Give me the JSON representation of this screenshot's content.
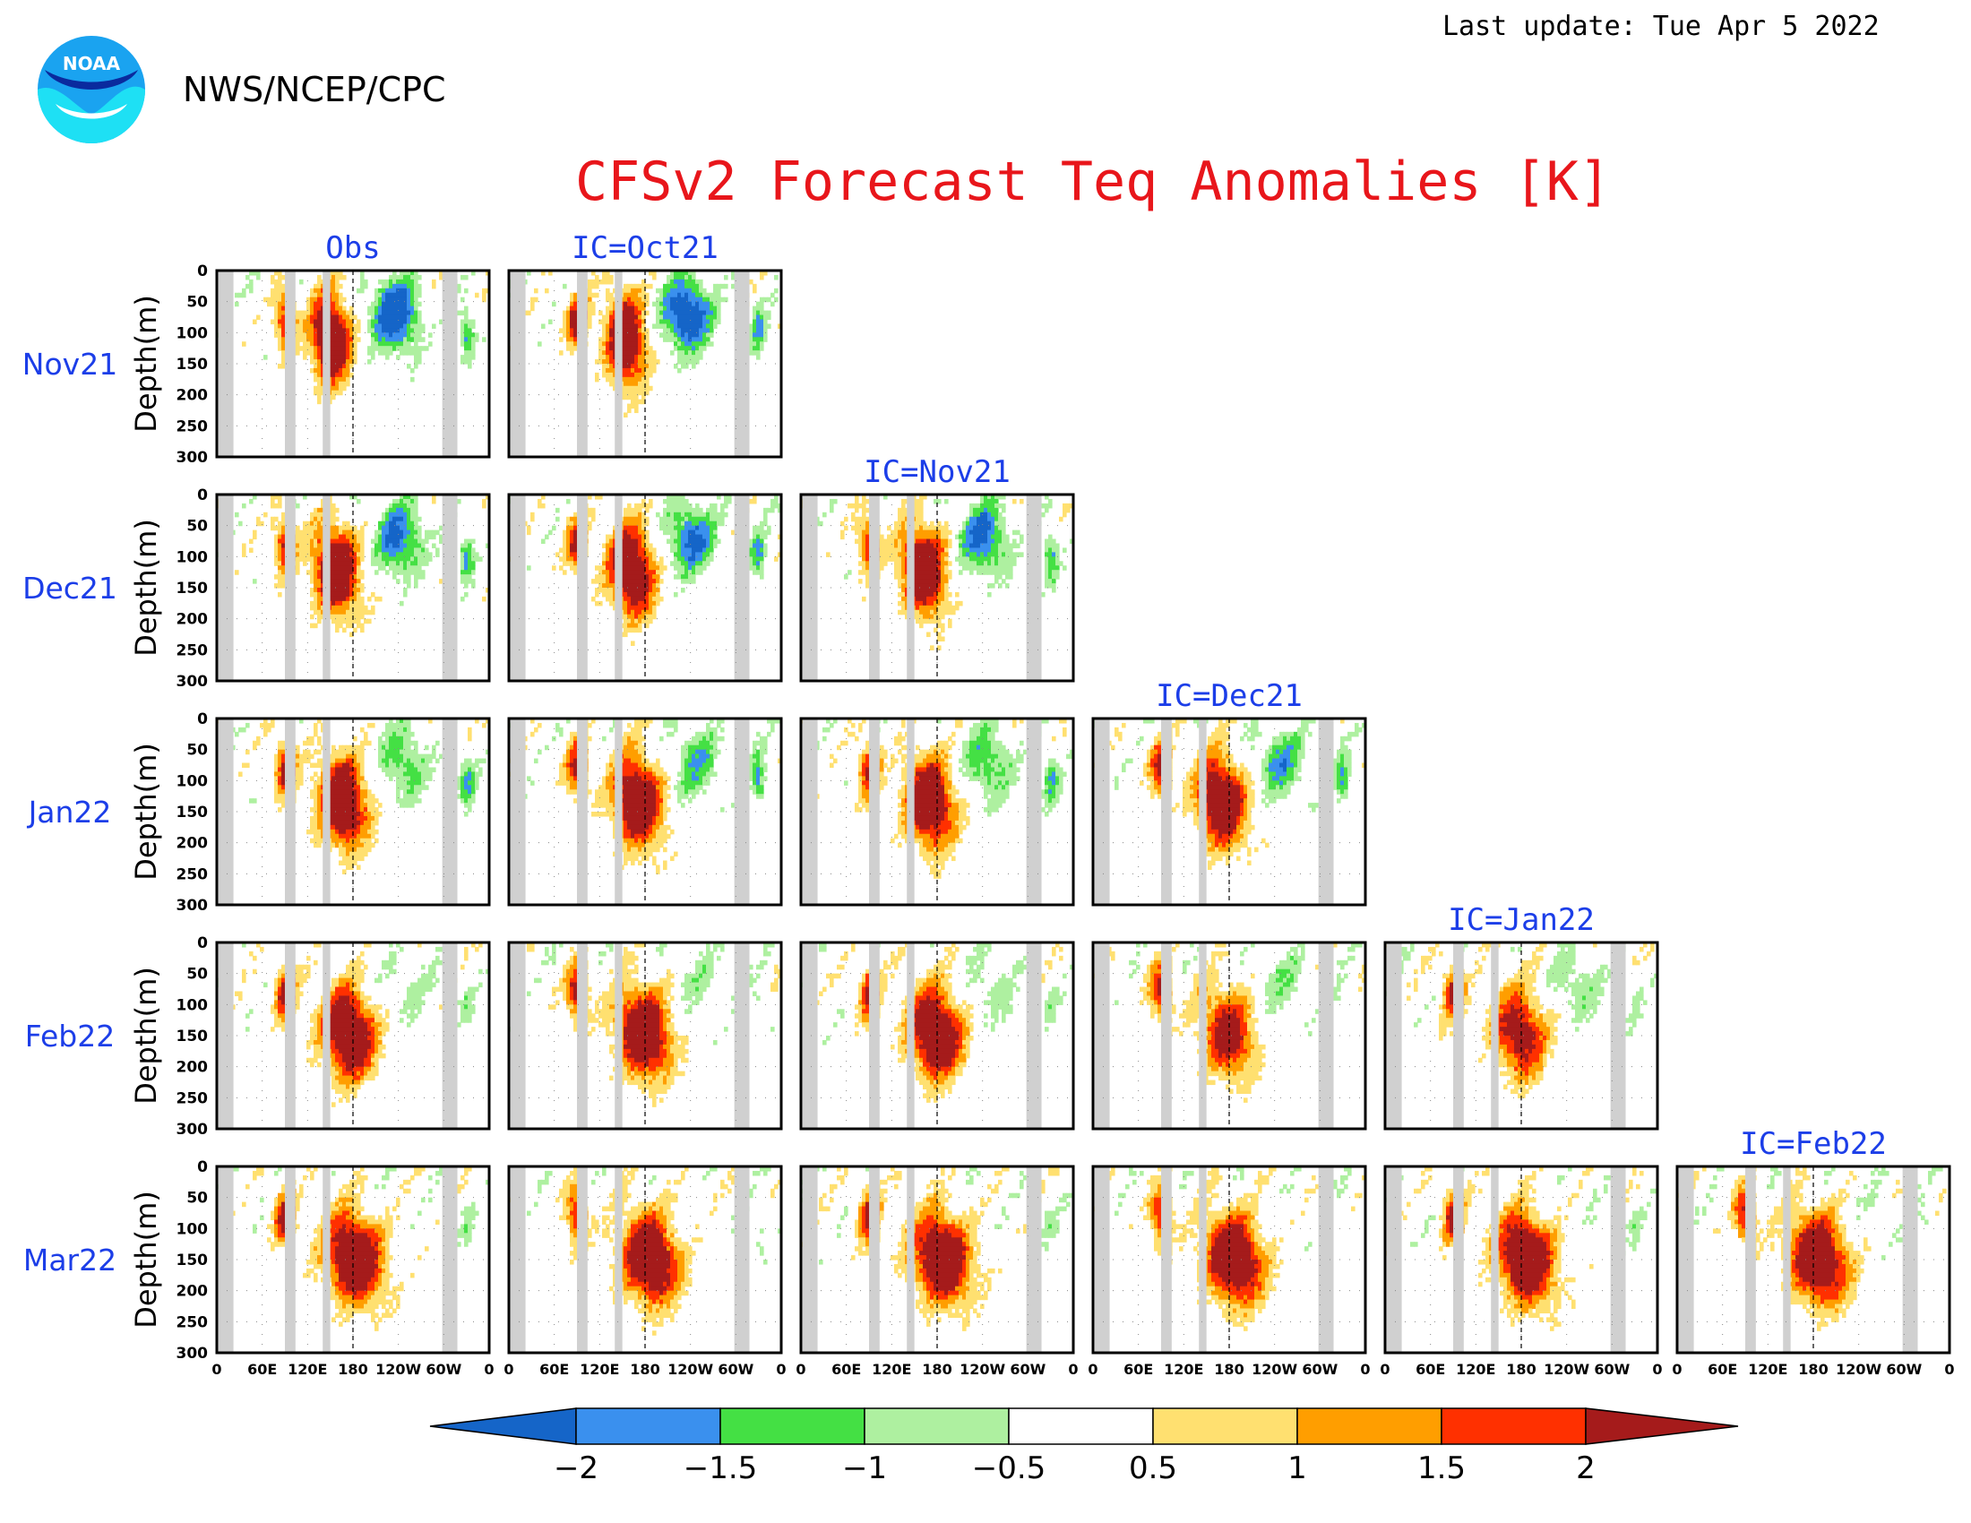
{
  "header": {
    "last_update": "Last update: Tue Apr  5 2022",
    "org": "NWS/NCEP/CPC",
    "logo_text": "NOAA",
    "title": "CFSv2 Forecast Teq Anomalies [K]"
  },
  "colors": {
    "title": "#e8161b",
    "column_labels": "#1c3ee8",
    "row_labels": "#1c3ee8",
    "land_mask": "#d0d0d0",
    "levels": [
      "#1565c8",
      "#3a90ee",
      "#44e044",
      "#aef0a0",
      "#ffffff",
      "#ffe070",
      "#ff9e00",
      "#ff3000",
      "#a51b1b"
    ]
  },
  "chart_data": {
    "type": "heatmap",
    "title": "CFSv2 Forecast Teq Anomalies [K]",
    "columns": [
      "Obs",
      "IC=Oct21",
      "IC=Nov21",
      "IC=Dec21",
      "IC=Jan22",
      "IC=Feb22"
    ],
    "rows": [
      "Nov21",
      "Dec21",
      "Jan22",
      "Feb22",
      "Mar22"
    ],
    "ylabel": "Depth(m)",
    "y_ticks": [
      "0",
      "50",
      "100",
      "150",
      "200",
      "250",
      "300"
    ],
    "ylim": [
      300,
      0
    ],
    "x_ticks": [
      "0",
      "60E",
      "120E",
      "180",
      "120W",
      "60W",
      "0"
    ],
    "xlim": [
      0,
      360
    ],
    "colorbar": {
      "tick_labels": [
        "−2",
        "−1.5",
        "−1",
        "−0.5",
        "0.5",
        "1",
        "1.5",
        "2"
      ],
      "levels": [
        -2,
        -1.5,
        -1,
        -0.5,
        0.5,
        1,
        1.5,
        2
      ]
    },
    "land_bands_lon": [
      [
        2,
        22
      ],
      [
        90,
        104
      ],
      [
        140,
        150
      ],
      [
        298,
        318
      ]
    ],
    "dateline_lon": 180,
    "warm_anomaly_center_lon": [
      150,
      200
    ],
    "warm_anomaly_depth_m": [
      80,
      220
    ]
  }
}
